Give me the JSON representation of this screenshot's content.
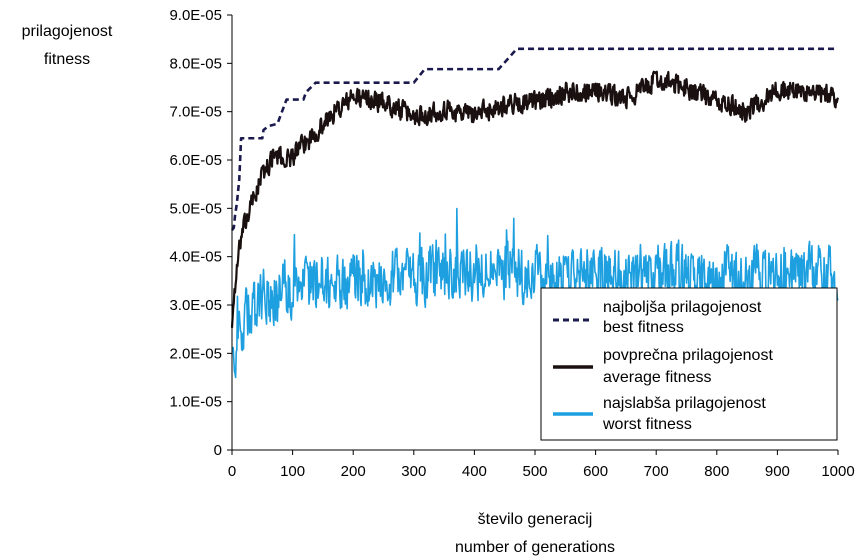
{
  "chart_data": {
    "type": "line",
    "ylabel_lines": [
      "prilagojenost",
      "fitness"
    ],
    "xlabel_lines": [
      "število generacij",
      "number of generations"
    ],
    "xlim": [
      0,
      1000
    ],
    "ylim": [
      0,
      9e-05
    ],
    "x_ticks": [
      "0",
      "100",
      "200",
      "300",
      "400",
      "500",
      "600",
      "700",
      "800",
      "900",
      "1000"
    ],
    "y_ticks": [
      "0",
      "1.0E-05",
      "2.0E-05",
      "3.0E-05",
      "4.0E-05",
      "5.0E-05",
      "6.0E-05",
      "7.0E-05",
      "8.0E-05",
      "9.0E-05"
    ],
    "grid": false,
    "legend_position": "bottom-right",
    "series": [
      {
        "name_lines": [
          "najboljša prilagojenost",
          "best fitness"
        ],
        "color": "#1a1a4e",
        "style": "dashed",
        "points": [
          [
            0,
            4.55e-05
          ],
          [
            3,
            4.6e-05
          ],
          [
            5,
            4.85e-05
          ],
          [
            8,
            5.1e-05
          ],
          [
            12,
            5.6e-05
          ],
          [
            15,
            6.45e-05
          ],
          [
            50,
            6.45e-05
          ],
          [
            52,
            6.62e-05
          ],
          [
            60,
            6.7e-05
          ],
          [
            75,
            6.75e-05
          ],
          [
            90,
            7.25e-05
          ],
          [
            118,
            7.25e-05
          ],
          [
            122,
            7.4e-05
          ],
          [
            138,
            7.6e-05
          ],
          [
            300,
            7.6e-05
          ],
          [
            318,
            7.88e-05
          ],
          [
            440,
            7.88e-05
          ],
          [
            470,
            8.3e-05
          ],
          [
            1000,
            8.3e-05
          ]
        ]
      },
      {
        "name_lines": [
          "povprečna prilagojenost",
          "average fitness"
        ],
        "color": "#1a1010",
        "style": "solid",
        "anchors": [
          [
            0,
            2.6e-05
          ],
          [
            5,
            3.4e-05
          ],
          [
            15,
            4.4e-05
          ],
          [
            30,
            5e-05
          ],
          [
            50,
            5.7e-05
          ],
          [
            70,
            6.1e-05
          ],
          [
            90,
            6e-05
          ],
          [
            110,
            6.2e-05
          ],
          [
            140,
            6.6e-05
          ],
          [
            170,
            7e-05
          ],
          [
            200,
            7.3e-05
          ],
          [
            250,
            7.2e-05
          ],
          [
            300,
            6.9e-05
          ],
          [
            350,
            7.05e-05
          ],
          [
            400,
            6.95e-05
          ],
          [
            450,
            7.15e-05
          ],
          [
            500,
            7.2e-05
          ],
          [
            550,
            7.4e-05
          ],
          [
            600,
            7.45e-05
          ],
          [
            650,
            7.25e-05
          ],
          [
            700,
            7.65e-05
          ],
          [
            750,
            7.5e-05
          ],
          [
            800,
            7.2e-05
          ],
          [
            850,
            7e-05
          ],
          [
            900,
            7.45e-05
          ],
          [
            950,
            7.4e-05
          ],
          [
            1000,
            7.3e-05
          ]
        ],
        "noise": 2e-06
      },
      {
        "name_lines": [
          "najslabša prilagojenost",
          "worst fitness"
        ],
        "color": "#1ea0e0",
        "style": "solid",
        "anchors": [
          [
            0,
            1.9e-05
          ],
          [
            20,
            2.7e-05
          ],
          [
            50,
            3.1e-05
          ],
          [
            100,
            3.4e-05
          ],
          [
            150,
            3.5e-05
          ],
          [
            200,
            3.45e-05
          ],
          [
            300,
            3.6e-05
          ],
          [
            400,
            3.7e-05
          ],
          [
            500,
            3.6e-05
          ],
          [
            600,
            3.6e-05
          ],
          [
            700,
            3.7e-05
          ],
          [
            800,
            3.6e-05
          ],
          [
            900,
            3.7e-05
          ],
          [
            1000,
            3.6e-05
          ]
        ],
        "noise": 5.5e-06
      }
    ]
  }
}
